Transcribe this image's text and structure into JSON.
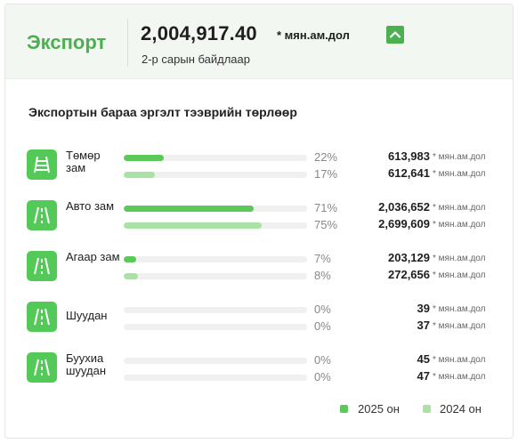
{
  "header": {
    "title": "Экспорт",
    "value": "2,004,917.40",
    "unit": "* мян.ам.дол",
    "subtitle": "2-р сарын байдлаар",
    "trend": "up"
  },
  "colors": {
    "accent": "#4caf50",
    "bar_2025": "#5bc95a",
    "bar_2024": "#a8e3a4",
    "header_bg": "#f2f7f2"
  },
  "section": {
    "title": "Экспортын бараа эргэлт тээврийн төрлөөр"
  },
  "rows": [
    {
      "label": "Төмөр зам",
      "icon": "railway-icon",
      "y2025": {
        "pct": "22%",
        "pct_value": 22,
        "value": "613,983",
        "unit": "* мян.ам.дол"
      },
      "y2024": {
        "pct": "17%",
        "pct_value": 17,
        "value": "612,641",
        "unit": "* мян.ам.дол"
      }
    },
    {
      "label": "Авто зам",
      "icon": "road-icon",
      "y2025": {
        "pct": "71%",
        "pct_value": 71,
        "value": "2,036,652",
        "unit": "* мян.ам.дол"
      },
      "y2024": {
        "pct": "75%",
        "pct_value": 75,
        "value": "2,699,609",
        "unit": "* мян.ам.дол"
      }
    },
    {
      "label": "Агаар зам",
      "icon": "road-icon",
      "y2025": {
        "pct": "7%",
        "pct_value": 7,
        "value": "203,129",
        "unit": "* мян.ам.дол"
      },
      "y2024": {
        "pct": "8%",
        "pct_value": 8,
        "value": "272,656",
        "unit": "* мян.ам.дол"
      }
    },
    {
      "label": "Шуудан",
      "icon": "road-icon",
      "y2025": {
        "pct": "0%",
        "pct_value": 0,
        "value": "39",
        "unit": "* мян.ам.дол"
      },
      "y2024": {
        "pct": "0%",
        "pct_value": 0,
        "value": "37",
        "unit": "* мян.ам.дол"
      }
    },
    {
      "label": "Буухиа шуудан",
      "icon": "road-icon",
      "y2025": {
        "pct": "0%",
        "pct_value": 0,
        "value": "45",
        "unit": "* мян.ам.дол"
      },
      "y2024": {
        "pct": "0%",
        "pct_value": 0,
        "value": "47",
        "unit": "* мян.ам.дол"
      }
    }
  ],
  "legend": [
    {
      "label": "2025 он",
      "color": "#5bc95a"
    },
    {
      "label": "2024 он",
      "color": "#a8e3a4"
    }
  ]
}
